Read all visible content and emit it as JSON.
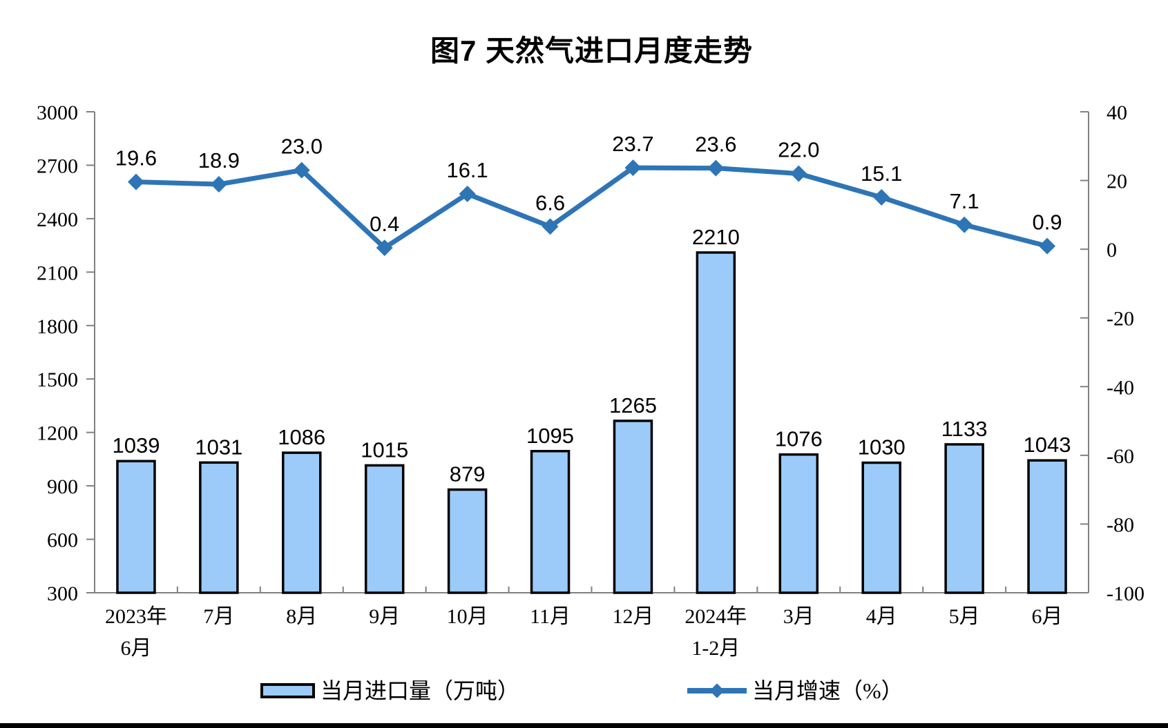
{
  "title": "图7 天然气进口月度走势",
  "colors": {
    "bar_fill": "#9CCBFA",
    "bar_border": "#000000",
    "line": "#2E75B6",
    "axis": "#808080",
    "text": "#000000"
  },
  "legend": [
    {
      "label": "当月进口量（万吨）",
      "type": "bar"
    },
    {
      "label": "当月增速（%）",
      "type": "line"
    }
  ],
  "chart_data": {
    "type": "bar+line",
    "title": "图7 天然气进口月度走势",
    "categories": [
      "2023年\n6月",
      "7月",
      "8月",
      "9月",
      "10月",
      "11月",
      "12月",
      "2024年\n1-2月",
      "3月",
      "4月",
      "5月",
      "6月"
    ],
    "series": [
      {
        "name": "当月进口量（万吨）",
        "type": "bar",
        "axis": "left",
        "values": [
          1039,
          1031,
          1086,
          1015,
          879,
          1095,
          1265,
          2210,
          1076,
          1030,
          1133,
          1043
        ],
        "labels": [
          "1039",
          "1031",
          "1086",
          "1015",
          "879",
          "1095",
          "1265",
          "2210",
          "1076",
          "1030",
          "1133",
          "1043"
        ]
      },
      {
        "name": "当月增速（%）",
        "type": "line",
        "axis": "right",
        "values": [
          19.6,
          18.9,
          23.0,
          0.4,
          16.1,
          6.6,
          23.7,
          23.6,
          22.0,
          15.1,
          7.1,
          0.9
        ],
        "labels": [
          "19.6",
          "18.9",
          "23.0",
          "0.4",
          "16.1",
          "6.6",
          "23.7",
          "23.6",
          "22.0",
          "15.1",
          "7.1",
          "0.9"
        ]
      }
    ],
    "left_axis": {
      "min": 300,
      "max": 3000,
      "step": 300
    },
    "right_axis": {
      "min": -100,
      "max": 40,
      "step": 20
    },
    "grid": false,
    "legend_position": "bottom"
  }
}
